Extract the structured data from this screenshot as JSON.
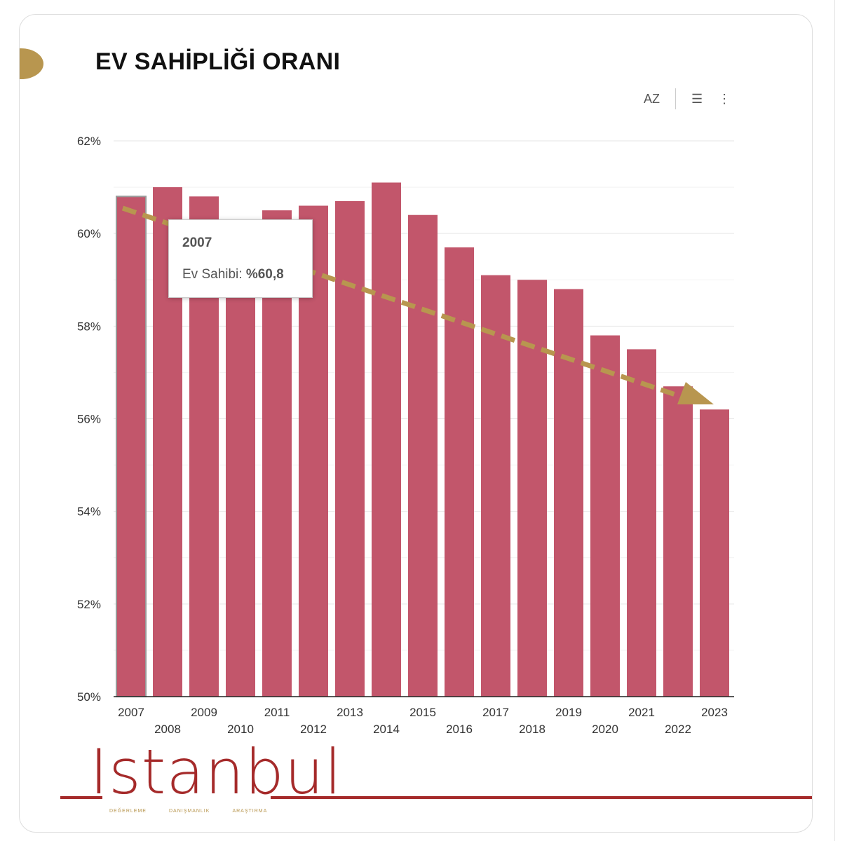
{
  "header": {
    "title": "EV SAHİPLİĞİ ORANI",
    "sort_icon_label": "AZ"
  },
  "tooltip": {
    "year": "2007",
    "label": "Ev Sahibi:",
    "value": "%60,8"
  },
  "logo": {
    "word": "Istanbul",
    "taglines": [
      "DEĞERLEME",
      "DANIŞMANLIK",
      "ARAŞTIRMA"
    ]
  },
  "colors": {
    "bar": "#c2566b",
    "trend": "#b8964f",
    "logo": "#a52a2a"
  },
  "chart_data": {
    "type": "bar",
    "title": "EV SAHİPLİĞİ ORANI",
    "categories": [
      "2007",
      "2008",
      "2009",
      "2010",
      "2011",
      "2012",
      "2013",
      "2014",
      "2015",
      "2016",
      "2017",
      "2018",
      "2019",
      "2020",
      "2021",
      "2022",
      "2023"
    ],
    "series": [
      {
        "name": "Ev Sahibi",
        "values": [
          60.8,
          61.0,
          60.8,
          60.3,
          60.5,
          60.6,
          60.7,
          61.1,
          60.4,
          59.7,
          59.1,
          59.0,
          58.8,
          57.8,
          57.5,
          56.7,
          56.2
        ]
      }
    ],
    "ylim": [
      50,
      62
    ],
    "yticks": [
      50,
      52,
      54,
      56,
      58,
      60,
      62
    ],
    "ytick_labels": [
      "50%",
      "52%",
      "54%",
      "56%",
      "58%",
      "60%",
      "62%"
    ],
    "grid": true,
    "annotations": [
      "downward dashed trend arrow"
    ]
  }
}
